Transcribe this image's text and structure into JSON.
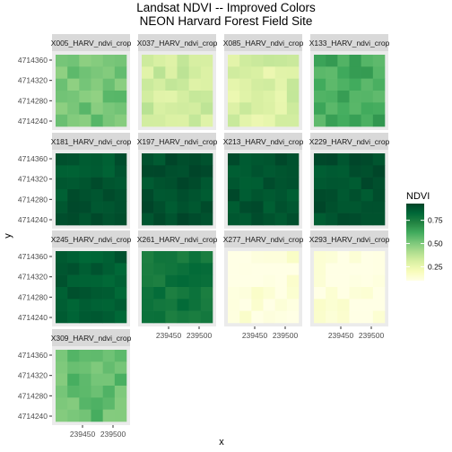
{
  "chart_data": {
    "type": "heatmap",
    "title_line1": "Landsat NDVI -- Improved Colors",
    "title_line2": "NEON Harvard Forest Field Site",
    "xlabel": "x",
    "ylabel": "y",
    "x_ticks": [
      "239450",
      "239500"
    ],
    "y_ticks": [
      "4714360",
      "4714320",
      "4714280",
      "4714240"
    ],
    "legend": {
      "title": "NDVI",
      "ticks": [
        "0.75",
        "0.50",
        "0.25"
      ],
      "tick_values": [
        0.75,
        0.5,
        0.25
      ],
      "range": [
        0.1,
        0.93
      ],
      "colors": [
        "#ffffe5",
        "#f7fcb9",
        "#d9f0a3",
        "#addd8e",
        "#78c679",
        "#41ab5d",
        "#238443",
        "#006837",
        "#004529"
      ]
    },
    "panels": [
      {
        "label": "X005_HARV_ndvi_crop",
        "mean": 0.52
      },
      {
        "label": "X037_HARV_ndvi_crop",
        "mean": 0.33
      },
      {
        "label": "X085_HARV_ndvi_crop",
        "mean": 0.3
      },
      {
        "label": "X133_HARV_ndvi_crop",
        "mean": 0.62
      },
      {
        "label": "X181_HARV_ndvi_crop",
        "mean": 0.88
      },
      {
        "label": "X197_HARV_ndvi_crop",
        "mean": 0.9
      },
      {
        "label": "X213_HARV_ndvi_crop",
        "mean": 0.89
      },
      {
        "label": "X229_HARV_ndvi_crop",
        "mean": 0.89
      },
      {
        "label": "X245_HARV_ndvi_crop",
        "mean": 0.86
      },
      {
        "label": "X261_HARV_ndvi_crop",
        "mean": 0.78
      },
      {
        "label": "X277_HARV_ndvi_crop",
        "mean": 0.12
      },
      {
        "label": "X293_HARV_ndvi_crop",
        "mean": 0.11
      },
      {
        "label": "X309_HARV_ndvi_crop",
        "mean": 0.55
      }
    ]
  }
}
